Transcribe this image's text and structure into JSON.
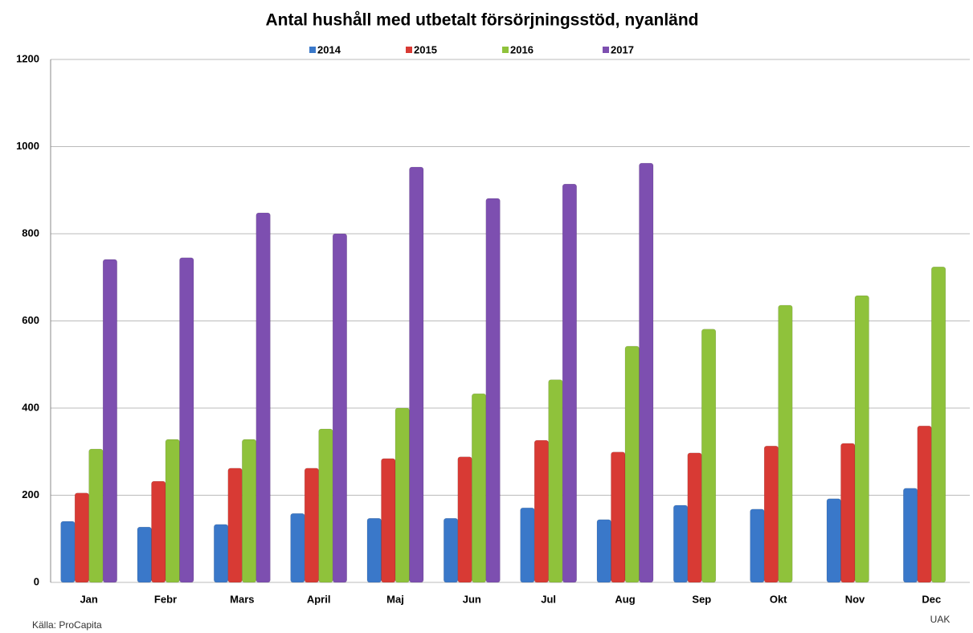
{
  "chart_data": {
    "type": "bar",
    "title": "Antal hushåll med utbetalt försörjningsstöd, nyanländ",
    "categories": [
      "Jan",
      "Febr",
      "Mars",
      "April",
      "Maj",
      "Jun",
      "Jul",
      "Aug",
      "Sep",
      "Okt",
      "Nov",
      "Dec"
    ],
    "series": [
      {
        "name": "2014",
        "color": "#3a78c9",
        "values": [
          140,
          127,
          133,
          158,
          147,
          147,
          171,
          144,
          177,
          168,
          192,
          216
        ]
      },
      {
        "name": "2015",
        "color": "#d83a34",
        "values": [
          205,
          232,
          262,
          262,
          284,
          288,
          326,
          299,
          297,
          313,
          319,
          359
        ]
      },
      {
        "name": "2016",
        "color": "#8fc23b",
        "values": [
          306,
          328,
          328,
          352,
          400,
          433,
          465,
          542,
          581,
          636,
          658,
          724
        ]
      },
      {
        "name": "2017",
        "color": "#7d4fb0",
        "values": [
          741,
          745,
          848,
          800,
          953,
          881,
          914,
          962,
          null,
          null,
          null,
          null
        ]
      }
    ],
    "ylim": [
      0,
      1200
    ],
    "yticks": [
      0,
      200,
      400,
      600,
      800,
      1000,
      1200
    ],
    "grid": true,
    "legend": "top",
    "source": "Källa: ProCapita",
    "note": "UAK"
  }
}
